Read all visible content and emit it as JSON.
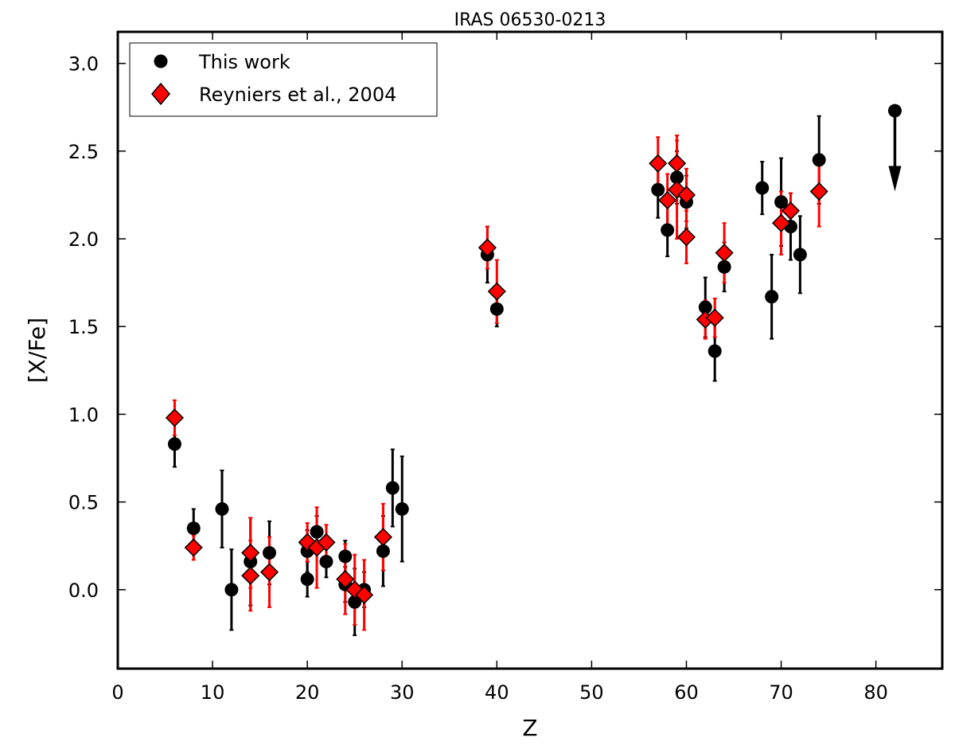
{
  "chart_data": {
    "type": "scatter",
    "title": "IRAS 06530-0213",
    "xlabel": "Z",
    "ylabel": "[X/Fe]",
    "xlim": [
      0,
      87
    ],
    "ylim": [
      -0.45,
      3.18
    ],
    "xticks": [
      0,
      10,
      20,
      30,
      40,
      50,
      60,
      70,
      80
    ],
    "yticks": [
      0.0,
      0.5,
      1.0,
      1.5,
      2.0,
      2.5,
      3.0
    ],
    "grid": false,
    "legend_position": "top-left",
    "series": [
      {
        "name": "This work",
        "marker": "circle",
        "color": "#000000",
        "errorbar_color": "#000000",
        "points": [
          {
            "x": 6,
            "y": 0.83,
            "err": 0.13
          },
          {
            "x": 8,
            "y": 0.35,
            "err": 0.11
          },
          {
            "x": 11,
            "y": 0.46,
            "err": 0.22
          },
          {
            "x": 12,
            "y": 0.0,
            "err": 0.23
          },
          {
            "x": 14,
            "y": 0.16,
            "err": 0.25
          },
          {
            "x": 16,
            "y": 0.21,
            "err": 0.18
          },
          {
            "x": 20,
            "y": 0.22,
            "err": 0.12
          },
          {
            "x": 20,
            "y": 0.06,
            "err": 0.1
          },
          {
            "x": 21,
            "y": 0.33,
            "err": 0.09
          },
          {
            "x": 22,
            "y": 0.16,
            "err": 0.09
          },
          {
            "x": 24,
            "y": 0.19,
            "err": 0.09
          },
          {
            "x": 24,
            "y": 0.03,
            "err": 0.1
          },
          {
            "x": 25,
            "y": -0.07,
            "err": 0.19
          },
          {
            "x": 26,
            "y": 0.0,
            "err": 0.1
          },
          {
            "x": 28,
            "y": 0.22,
            "err": 0.2
          },
          {
            "x": 29,
            "y": 0.58,
            "err": 0.22
          },
          {
            "x": 30,
            "y": 0.46,
            "err": 0.3
          },
          {
            "x": 39,
            "y": 1.91,
            "err": 0.16
          },
          {
            "x": 40,
            "y": 1.6,
            "err": 0.1
          },
          {
            "x": 57,
            "y": 2.28,
            "err": 0.16
          },
          {
            "x": 58,
            "y": 2.05,
            "err": 0.15
          },
          {
            "x": 59,
            "y": 2.35,
            "err": 0.15
          },
          {
            "x": 60,
            "y": 2.21,
            "err": 0.15
          },
          {
            "x": 62,
            "y": 1.61,
            "err": 0.17
          },
          {
            "x": 63,
            "y": 1.36,
            "err": 0.17
          },
          {
            "x": 64,
            "y": 1.84,
            "err": 0.14
          },
          {
            "x": 68,
            "y": 2.29,
            "err": 0.15
          },
          {
            "x": 69,
            "y": 1.67,
            "err": 0.24
          },
          {
            "x": 70,
            "y": 2.21,
            "err": 0.25
          },
          {
            "x": 71,
            "y": 2.07,
            "err": 0.19
          },
          {
            "x": 72,
            "y": 1.91,
            "err": 0.22
          },
          {
            "x": 74,
            "y": 2.45,
            "err": 0.25
          }
        ]
      },
      {
        "name": "Reyniers et al., 2004",
        "marker": "diamond",
        "color": "#ff0000",
        "errorbar_color": "#ff0000",
        "points": [
          {
            "x": 6,
            "y": 0.98,
            "err": 0.1
          },
          {
            "x": 8,
            "y": 0.24,
            "err": 0.07
          },
          {
            "x": 14,
            "y": 0.21,
            "err": 0.2
          },
          {
            "x": 14,
            "y": 0.08,
            "err": 0.2
          },
          {
            "x": 16,
            "y": 0.1,
            "err": 0.2
          },
          {
            "x": 20,
            "y": 0.27,
            "err": 0.11
          },
          {
            "x": 21,
            "y": 0.24,
            "err": 0.23
          },
          {
            "x": 22,
            "y": 0.27,
            "err": 0.1
          },
          {
            "x": 24,
            "y": 0.06,
            "err": 0.2
          },
          {
            "x": 25,
            "y": 0.0,
            "err": 0.2
          },
          {
            "x": 26,
            "y": -0.03,
            "err": 0.2
          },
          {
            "x": 28,
            "y": 0.3,
            "err": 0.19
          },
          {
            "x": 39,
            "y": 1.95,
            "err": 0.12
          },
          {
            "x": 40,
            "y": 1.7,
            "err": 0.18
          },
          {
            "x": 57,
            "y": 2.43,
            "err": 0.15
          },
          {
            "x": 58,
            "y": 2.22,
            "err": 0.15
          },
          {
            "x": 59,
            "y": 2.43,
            "err": 0.16
          },
          {
            "x": 59,
            "y": 2.28,
            "err": 0.28
          },
          {
            "x": 60,
            "y": 2.25,
            "err": 0.15
          },
          {
            "x": 60,
            "y": 2.01,
            "err": 0.15
          },
          {
            "x": 62,
            "y": 1.54,
            "err": 0.11
          },
          {
            "x": 63,
            "y": 1.55,
            "err": 0.11
          },
          {
            "x": 64,
            "y": 1.92,
            "err": 0.17
          },
          {
            "x": 70,
            "y": 2.09,
            "err": 0.18
          },
          {
            "x": 71,
            "y": 2.16,
            "err": 0.1
          },
          {
            "x": 74,
            "y": 2.27,
            "err": 0.2
          }
        ]
      }
    ],
    "upper_limits": [
      {
        "x": 82,
        "y": 2.73,
        "arrow_to": 2.27,
        "series": "This work"
      }
    ]
  }
}
